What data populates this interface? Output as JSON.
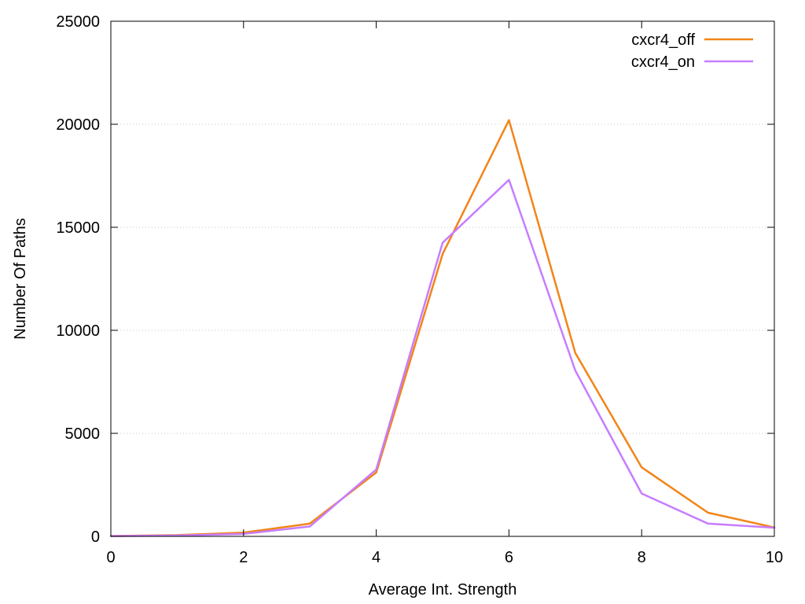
{
  "chart_data": {
    "type": "line",
    "title": "",
    "xlabel": "Average Int. Strength",
    "ylabel": "Number Of Paths",
    "xlim": [
      0,
      10
    ],
    "ylim": [
      0,
      25000
    ],
    "xticks": [
      0,
      2,
      4,
      6,
      8,
      10
    ],
    "yticks": [
      0,
      5000,
      10000,
      15000,
      20000,
      25000
    ],
    "grid": "horizontal dotted",
    "legend_position": "top-right",
    "series": [
      {
        "name": "cxcr4_off",
        "color": "#f28418",
        "x": [
          0,
          1,
          2,
          3,
          4,
          5,
          6,
          7,
          8,
          9,
          10
        ],
        "y": [
          20,
          60,
          180,
          620,
          3100,
          13700,
          20200,
          8900,
          3350,
          1150,
          430
        ]
      },
      {
        "name": "cxcr4_on",
        "color": "#c77dff",
        "x": [
          0,
          1,
          2,
          3,
          4,
          5,
          6,
          7,
          8,
          9,
          10
        ],
        "y": [
          15,
          40,
          120,
          480,
          3250,
          14250,
          17300,
          8050,
          2080,
          620,
          420
        ]
      }
    ]
  }
}
